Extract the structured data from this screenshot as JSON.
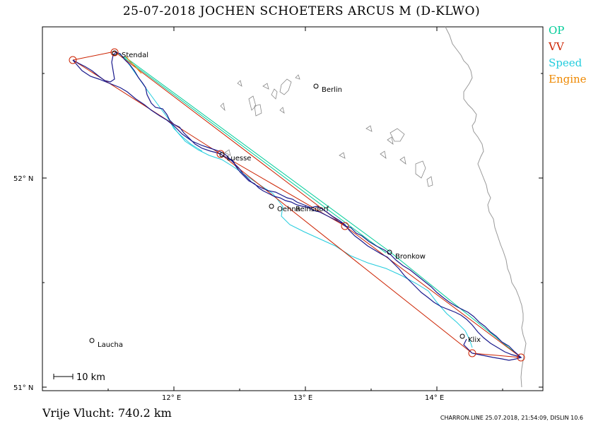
{
  "title": "25-07-2018   JOCHEN SCHOETERS   ARCUS M (D-KLWO)",
  "legend": [
    {
      "label": "OP",
      "color": "#00cc99"
    },
    {
      "label": "VV",
      "color": "#cc2200"
    },
    {
      "label": "Speed",
      "color": "#22ccdd"
    },
    {
      "label": "Engine",
      "color": "#ee8800"
    }
  ],
  "axes": {
    "lon_labels": [
      "12° E",
      "13° E",
      "14° E"
    ],
    "lat_labels": [
      "52° N",
      "51° N"
    ]
  },
  "places": [
    {
      "name": "Stendal"
    },
    {
      "name": "Berlin"
    },
    {
      "name": "Luesse"
    },
    {
      "name": "Oehna"
    },
    {
      "name": "Reinsdorf"
    },
    {
      "name": "Bronkow"
    },
    {
      "name": "Klix"
    },
    {
      "name": "Laucha"
    }
  ],
  "scale_label": "10  km",
  "footer": {
    "distance": "Vrije Vlucht:  740.2 km",
    "info": "CHARRON.LINE 25.07.2018, 21:54:09, DISLIN 10.6"
  },
  "colors": {
    "track": "#1a1a8c",
    "border": "#999999",
    "lakes": "#888888",
    "frame": "#000000"
  }
}
